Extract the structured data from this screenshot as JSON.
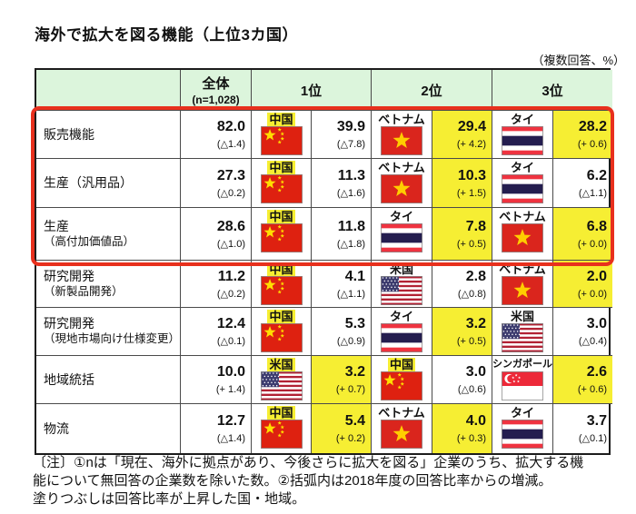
{
  "title": "海外で拡大を図る機能（上位3カ国）",
  "subtitle": "（複数回答、%）",
  "table": {
    "headers": {
      "overall": "全体",
      "overall_n": "(n=1,028)",
      "rank1": "1位",
      "rank2": "2位",
      "rank3": "3位"
    },
    "rows": [
      {
        "label": "販売機能",
        "label2": "",
        "outlined": true,
        "overall": {
          "value": "82.0",
          "delta": "(△1.4)"
        },
        "ranks": [
          {
            "country": "中国",
            "flag": "cn",
            "label_highlight": true,
            "value": "39.9",
            "delta": "(△7.8)",
            "value_highlight": false
          },
          {
            "country": "ベトナム",
            "flag": "vn",
            "label_highlight": false,
            "value": "29.4",
            "delta": "(+ 4.2)",
            "value_highlight": true
          },
          {
            "country": "タイ",
            "flag": "th",
            "label_highlight": false,
            "value": "28.2",
            "delta": "(+ 0.6)",
            "value_highlight": true
          }
        ]
      },
      {
        "label": "生産（汎用品）",
        "label2": "",
        "outlined": true,
        "overall": {
          "value": "27.3",
          "delta": "(△0.2)"
        },
        "ranks": [
          {
            "country": "中国",
            "flag": "cn",
            "label_highlight": true,
            "value": "11.3",
            "delta": "(△1.6)",
            "value_highlight": false
          },
          {
            "country": "ベトナム",
            "flag": "vn",
            "label_highlight": false,
            "value": "10.3",
            "delta": "(+ 1.5)",
            "value_highlight": true
          },
          {
            "country": "タイ",
            "flag": "th",
            "label_highlight": false,
            "value": "6.2",
            "delta": "(△1.1)",
            "value_highlight": false
          }
        ]
      },
      {
        "label": "生産",
        "label2": "（高付加価値品）",
        "outlined": true,
        "overall": {
          "value": "28.6",
          "delta": "(△1.0)"
        },
        "ranks": [
          {
            "country": "中国",
            "flag": "cn",
            "label_highlight": true,
            "value": "11.8",
            "delta": "(△1.8)",
            "value_highlight": false
          },
          {
            "country": "タイ",
            "flag": "th",
            "label_highlight": false,
            "value": "7.8",
            "delta": "(+ 0.5)",
            "value_highlight": true
          },
          {
            "country": "ベトナム",
            "flag": "vn",
            "label_highlight": false,
            "value": "6.8",
            "delta": "(+ 0.0)",
            "value_highlight": true
          }
        ]
      },
      {
        "label": "研究開発",
        "label2": "（新製品開発）",
        "outlined": false,
        "overall": {
          "value": "11.2",
          "delta": "(△0.2)"
        },
        "ranks": [
          {
            "country": "中国",
            "flag": "cn",
            "label_highlight": true,
            "value": "4.1",
            "delta": "(△1.1)",
            "value_highlight": false
          },
          {
            "country": "米国",
            "flag": "us",
            "label_highlight": false,
            "value": "2.8",
            "delta": "(△0.8)",
            "value_highlight": false
          },
          {
            "country": "ベトナム",
            "flag": "vn",
            "label_highlight": false,
            "value": "2.0",
            "delta": "(+ 0.0)",
            "value_highlight": true
          }
        ]
      },
      {
        "label": "研究開発",
        "label2": "（現地市場向け仕様変更）",
        "outlined": false,
        "overall": {
          "value": "12.4",
          "delta": "(△0.1)"
        },
        "ranks": [
          {
            "country": "中国",
            "flag": "cn",
            "label_highlight": true,
            "value": "5.3",
            "delta": "(△0.9)",
            "value_highlight": false
          },
          {
            "country": "タイ",
            "flag": "th",
            "label_highlight": false,
            "value": "3.2",
            "delta": "(+ 0.5)",
            "value_highlight": true
          },
          {
            "country": "米国",
            "flag": "us",
            "label_highlight": false,
            "value": "3.0",
            "delta": "(△0.4)",
            "value_highlight": false
          }
        ]
      },
      {
        "label": "地域統括",
        "label2": "",
        "outlined": false,
        "overall": {
          "value": "10.0",
          "delta": "(+ 1.4)"
        },
        "ranks": [
          {
            "country": "米国",
            "flag": "us",
            "label_highlight": true,
            "value": "3.2",
            "delta": "(+ 0.7)",
            "value_highlight": true
          },
          {
            "country": "中国",
            "flag": "cn",
            "label_highlight": true,
            "value": "3.0",
            "delta": "(△0.6)",
            "value_highlight": false
          },
          {
            "country": "シンガポール",
            "flag": "sg",
            "label_highlight": false,
            "value": "2.6",
            "delta": "(+ 0.6)",
            "value_highlight": true
          }
        ]
      },
      {
        "label": "物流",
        "label2": "",
        "outlined": false,
        "overall": {
          "value": "12.7",
          "delta": "(△1.4)"
        },
        "ranks": [
          {
            "country": "中国",
            "flag": "cn",
            "label_highlight": true,
            "value": "5.4",
            "delta": "(+ 0.2)",
            "value_highlight": true
          },
          {
            "country": "ベトナム",
            "flag": "vn",
            "label_highlight": false,
            "value": "4.0",
            "delta": "(+ 0.3)",
            "value_highlight": true
          },
          {
            "country": "タイ",
            "flag": "th",
            "label_highlight": false,
            "value": "3.7",
            "delta": "(△0.1)",
            "value_highlight": false
          }
        ]
      }
    ]
  },
  "note_lines": [
    "〔注〕①nは「現在、海外に拠点があり、今後さらに拡大を図る」企業のうち、拡大する機",
    "能について無回答の企業数を除いた数。②括弧内は2018年度の回答比率からの増減。",
    "塗りつぶしは回答比率が上昇した国・地域。"
  ],
  "flags": {
    "cn": "china",
    "vn": "vietnam",
    "th": "thailand",
    "us": "usa",
    "sg": "singapore"
  },
  "colors": {
    "header_bg": "#dcf5dc",
    "highlight_yellow": "#f6ee33",
    "outline_red": "#e8301d",
    "table_border": "#333333"
  }
}
